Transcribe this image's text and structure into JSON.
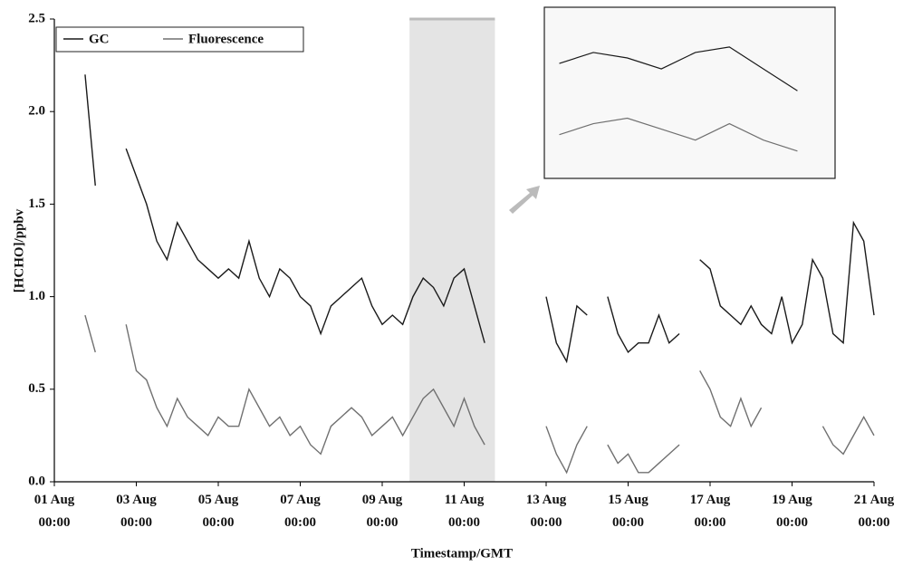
{
  "chart_data": {
    "type": "line",
    "xlabel": "Timestamp/GMT",
    "ylabel": "[HCHO]/ppbv",
    "x": [
      "01 Aug 00:00",
      "01 Aug 06:00",
      "01 Aug 12:00",
      "01 Aug 18:00",
      "02 Aug 00:00",
      "02 Aug 06:00",
      "02 Aug 12:00",
      "02 Aug 18:00",
      "03 Aug 00:00",
      "03 Aug 06:00",
      "03 Aug 12:00",
      "03 Aug 18:00",
      "04 Aug 00:00",
      "04 Aug 06:00",
      "04 Aug 12:00",
      "04 Aug 18:00",
      "05 Aug 00:00",
      "05 Aug 06:00",
      "05 Aug 12:00",
      "05 Aug 18:00",
      "06 Aug 00:00",
      "06 Aug 06:00",
      "06 Aug 12:00",
      "06 Aug 18:00",
      "07 Aug 00:00",
      "07 Aug 06:00",
      "07 Aug 12:00",
      "07 Aug 18:00",
      "08 Aug 00:00",
      "08 Aug 06:00",
      "08 Aug 12:00",
      "08 Aug 18:00",
      "09 Aug 00:00",
      "09 Aug 06:00",
      "09 Aug 12:00",
      "09 Aug 18:00",
      "10 Aug 00:00",
      "10 Aug 06:00",
      "10 Aug 12:00",
      "10 Aug 18:00",
      "11 Aug 00:00",
      "11 Aug 06:00",
      "11 Aug 12:00",
      "11 Aug 18:00",
      "12 Aug 00:00",
      "12 Aug 06:00",
      "12 Aug 12:00",
      "12 Aug 18:00",
      "13 Aug 00:00",
      "13 Aug 06:00",
      "13 Aug 12:00",
      "13 Aug 18:00",
      "14 Aug 00:00",
      "14 Aug 06:00",
      "14 Aug 12:00",
      "14 Aug 18:00",
      "15 Aug 00:00",
      "15 Aug 06:00",
      "15 Aug 12:00",
      "15 Aug 18:00",
      "16 Aug 00:00",
      "16 Aug 06:00",
      "16 Aug 12:00",
      "16 Aug 18:00",
      "17 Aug 00:00",
      "17 Aug 06:00",
      "17 Aug 12:00",
      "17 Aug 18:00",
      "18 Aug 00:00",
      "18 Aug 06:00",
      "18 Aug 12:00",
      "18 Aug 18:00",
      "19 Aug 00:00",
      "19 Aug 06:00",
      "19 Aug 12:00",
      "19 Aug 18:00",
      "20 Aug 00:00",
      "20 Aug 06:00",
      "20 Aug 12:00",
      "20 Aug 18:00",
      "21 Aug 00:00"
    ],
    "series": [
      {
        "name": "GC",
        "color": "#1a1a1a",
        "values": [
          null,
          null,
          null,
          2.2,
          1.6,
          null,
          null,
          1.8,
          1.65,
          1.5,
          1.3,
          1.2,
          1.4,
          1.3,
          1.2,
          1.15,
          1.1,
          1.15,
          1.1,
          1.3,
          1.1,
          1.0,
          1.15,
          1.1,
          1.0,
          0.95,
          0.8,
          0.95,
          1.0,
          1.05,
          1.1,
          0.95,
          0.85,
          0.9,
          0.85,
          1.0,
          1.1,
          1.05,
          0.95,
          1.1,
          1.15,
          0.95,
          0.75,
          null,
          null,
          null,
          null,
          null,
          1.0,
          0.75,
          0.65,
          0.95,
          0.9,
          null,
          1.0,
          0.8,
          0.7,
          0.75,
          0.75,
          0.9,
          0.75,
          0.8,
          null,
          1.2,
          1.15,
          0.95,
          0.9,
          0.85,
          0.95,
          0.85,
          0.8,
          1.0,
          0.75,
          0.85,
          1.2,
          1.1,
          0.8,
          0.75,
          1.4,
          1.3,
          0.9
        ]
      },
      {
        "name": "Fluorescence",
        "color": "#707070",
        "values": [
          null,
          null,
          null,
          0.9,
          0.7,
          null,
          null,
          0.85,
          0.6,
          0.55,
          0.4,
          0.3,
          0.45,
          0.35,
          0.3,
          0.25,
          0.35,
          0.3,
          0.3,
          0.5,
          0.4,
          0.3,
          0.35,
          0.25,
          0.3,
          0.2,
          0.15,
          0.3,
          0.35,
          0.4,
          0.35,
          0.25,
          0.3,
          0.35,
          0.25,
          0.35,
          0.45,
          0.5,
          0.4,
          0.3,
          0.45,
          0.3,
          0.2,
          null,
          null,
          null,
          null,
          null,
          0.3,
          0.15,
          0.05,
          0.2,
          0.3,
          null,
          0.2,
          0.1,
          0.15,
          0.05,
          0.05,
          0.1,
          0.15,
          0.2,
          null,
          0.6,
          0.5,
          0.35,
          0.3,
          0.45,
          0.3,
          0.4,
          null,
          null,
          null,
          null,
          null,
          0.3,
          0.2,
          0.15,
          0.25,
          0.35,
          0.25
        ]
      }
    ],
    "xlim": [
      "01 Aug 00:00",
      "21 Aug 00:00"
    ],
    "xticks": [
      "01 Aug 00:00",
      "03 Aug 00:00",
      "05 Aug 00:00",
      "07 Aug 00:00",
      "09 Aug 00:00",
      "11 Aug 00:00",
      "13 Aug 00:00",
      "15 Aug 00:00",
      "17 Aug 00:00",
      "19 Aug 00:00",
      "21 Aug 00:00"
    ],
    "ylim": [
      0,
      2.5
    ],
    "yticks": [
      {
        "value": 0,
        "label": "0.0"
      },
      0.5,
      {
        "value": 1,
        "label": "1.0"
      },
      1.5,
      {
        "value": 2,
        "label": "2.0"
      },
      2.5
    ],
    "highlight_x": [
      "09 Aug 16:00",
      "11 Aug 18:00"
    ],
    "legend": "upper left",
    "grid": false
  }
}
